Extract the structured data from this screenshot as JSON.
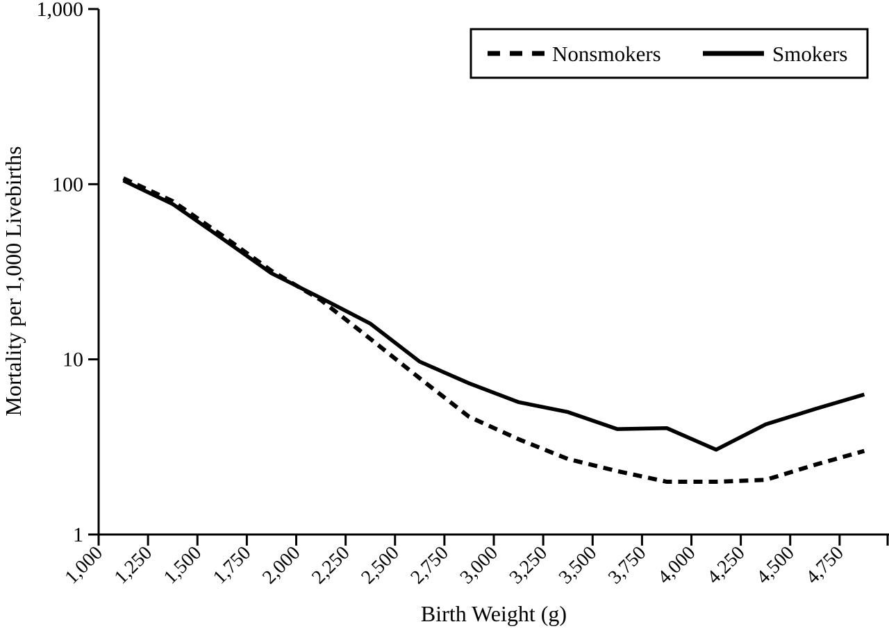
{
  "figure": {
    "background_color": "#ffffff",
    "line_color": "#000000"
  },
  "chart_data": {
    "type": "line",
    "title": "",
    "xlabel": "Birth Weight (g)",
    "ylabel": "Mortality per 1,000 Livebirths",
    "y_scale": "log",
    "xlim": [
      1000,
      5000
    ],
    "ylim": [
      1,
      1000
    ],
    "grid": false,
    "legend_position": "top-right",
    "x_tick_values": [
      1000,
      1250,
      1500,
      1750,
      2000,
      2250,
      2500,
      2750,
      3000,
      3250,
      3500,
      3750,
      4000,
      4250,
      4500,
      4750
    ],
    "x_tick_labels": [
      "1,000",
      "1,250",
      "1,500",
      "1,750",
      "2,000",
      "2,250",
      "2,500",
      "2,750",
      "3,000",
      "3,250",
      "3,500",
      "3,750",
      "4,000",
      "4,250",
      "4,500",
      "4,750"
    ],
    "y_tick_values": [
      1,
      10,
      100,
      1000
    ],
    "y_tick_labels": [
      "1",
      "10",
      "100",
      "1,000"
    ],
    "x_bin_centers": [
      1125,
      1375,
      1625,
      1875,
      2125,
      2375,
      2625,
      2875,
      3125,
      3375,
      3625,
      3875,
      4125,
      4375,
      4625,
      4875
    ],
    "series": [
      {
        "name": "Nonsmokers",
        "line_style": "dashed",
        "color": "#000000",
        "values": [
          108,
          80,
          51,
          32,
          21.8,
          13.1,
          7.8,
          4.7,
          3.5,
          2.7,
          2.3,
          2.0,
          2.0,
          2.05,
          2.5,
          3.0
        ]
      },
      {
        "name": "Smokers",
        "line_style": "solid",
        "color": "#000000",
        "values": [
          105,
          77,
          49,
          31,
          22.4,
          16,
          9.7,
          7.3,
          5.7,
          5.0,
          4.0,
          4.05,
          3.05,
          4.25,
          5.2,
          6.3
        ]
      }
    ]
  }
}
